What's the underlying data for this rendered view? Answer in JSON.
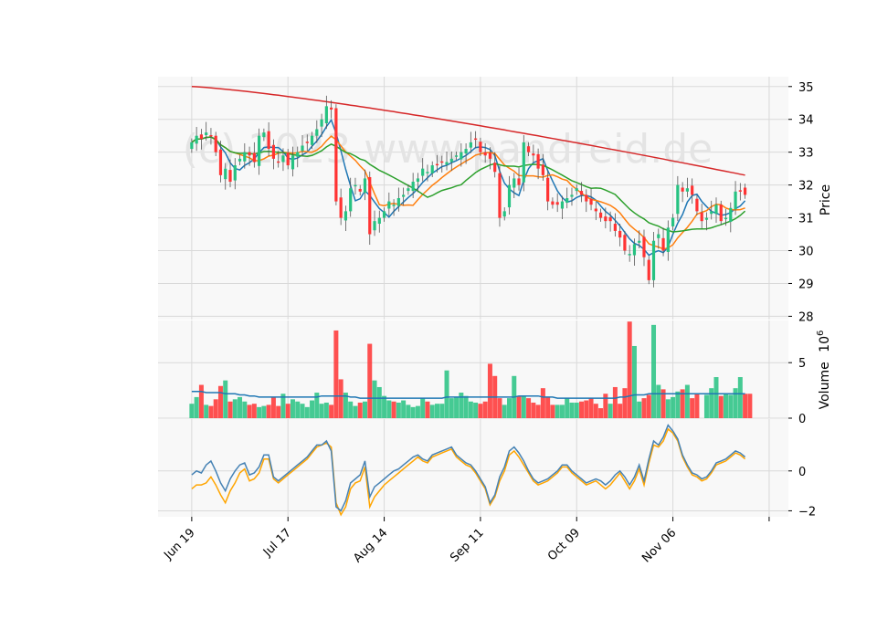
{
  "watermark": "(c) 2023 www.pandreid.de",
  "colors": {
    "up": "#26c281",
    "down": "#ff3333",
    "ma_fast": "#1f77b4",
    "ma_mid": "#ff7f0e",
    "ma_slow": "#2ca02c",
    "ma_long": "#d62728",
    "osc_blue": "#4682b4",
    "osc_orange": "#ffa500",
    "volume_ma": "#1f77b4",
    "grid": "#d9d9d9",
    "panel_bg": "#f8f8f8"
  },
  "chart_data": [
    {
      "type": "candlestick",
      "ylabel": "Price",
      "ylim": [
        27.9,
        35.3
      ],
      "yticks": [
        28,
        29,
        30,
        31,
        32,
        33,
        34,
        35
      ],
      "x_tick_labels": [
        "Jun 19",
        "Jul 17",
        "Aug 14",
        "Sep 11",
        "Oct 09",
        "Nov 06"
      ],
      "x_tick_index": [
        0,
        20,
        40,
        60,
        80,
        100
      ],
      "x_range": [
        -7,
        124
      ],
      "grid": true,
      "close": [
        33.3,
        33.5,
        33.4,
        33.6,
        33.5,
        33.0,
        32.3,
        32.5,
        32.1,
        32.6,
        32.8,
        33.0,
        32.9,
        32.7,
        33.5,
        33.6,
        33.1,
        32.8,
        32.7,
        32.9,
        32.6,
        32.9,
        33.0,
        33.2,
        33.3,
        33.5,
        33.7,
        34.0,
        34.4,
        34.3,
        31.5,
        31.0,
        31.2,
        31.9,
        32.0,
        31.8,
        32.2,
        30.5,
        30.9,
        31.0,
        31.2,
        31.5,
        31.4,
        31.6,
        31.7,
        31.9,
        32.1,
        32.2,
        32.5,
        32.4,
        32.6,
        32.6,
        32.7,
        32.7,
        32.8,
        32.9,
        33.0,
        33.1,
        33.3,
        33.4,
        33.0,
        32.9,
        32.8,
        32.4,
        31.0,
        31.2,
        32.0,
        32.2,
        32.0,
        33.3,
        33.0,
        32.9,
        32.5,
        32.3,
        31.5,
        31.4,
        31.4,
        31.5,
        31.6,
        31.7,
        31.9,
        31.7,
        31.5,
        31.4,
        31.2,
        31.0,
        30.9,
        30.9,
        30.6,
        30.4,
        30.0,
        29.9,
        30.2,
        30.3,
        29.8,
        29.1,
        30.3,
        30.5,
        30.0,
        30.7,
        31.0,
        32.0,
        31.8,
        31.9,
        31.7,
        31.2,
        30.9,
        31.0,
        31.2,
        31.4,
        30.9,
        31.0,
        31.3,
        31.8,
        31.8,
        31.7
      ]
    },
    {
      "type": "bar",
      "ylabel": "Volume",
      "unit_label": "10^6",
      "ylim": [
        0,
        8.8
      ],
      "yticks": [
        0,
        5
      ],
      "values": [
        1.3,
        1.9,
        3.0,
        1.2,
        1.1,
        1.7,
        2.9,
        3.4,
        1.5,
        1.7,
        1.9,
        1.5,
        1.2,
        1.3,
        1.0,
        1.1,
        1.2,
        1.9,
        1.1,
        2.2,
        1.3,
        1.7,
        1.5,
        1.3,
        1.0,
        1.6,
        2.3,
        1.3,
        1.4,
        1.2,
        7.9,
        3.5,
        2.3,
        1.5,
        1.1,
        1.4,
        1.5,
        6.7,
        3.4,
        2.8,
        2.0,
        1.6,
        1.5,
        1.4,
        1.6,
        1.2,
        1.0,
        1.1,
        1.8,
        1.5,
        1.2,
        1.3,
        1.3,
        4.3,
        1.8,
        1.9,
        2.3,
        2.0,
        1.5,
        1.4,
        1.3,
        1.5,
        4.9,
        3.8,
        1.8,
        1.2,
        1.8,
        3.8,
        2.0,
        2.0,
        1.8,
        1.4,
        1.2,
        2.7,
        1.9,
        1.2,
        1.2,
        1.2,
        1.8,
        1.4,
        1.4,
        1.5,
        1.6,
        1.8,
        1.3,
        0.9,
        2.2,
        1.3,
        2.8,
        1.3,
        2.7,
        8.7,
        6.5,
        1.5,
        1.8,
        2.1,
        8.4,
        3.0,
        2.6,
        1.7,
        1.9,
        2.4,
        2.6,
        3.0,
        1.8,
        2.2,
        0.0,
        2.1,
        2.7,
        3.7,
        2.0,
        2.2,
        2.1,
        2.7,
        3.7,
        2.2,
        2.2
      ],
      "ma_values": [
        2.4,
        2.4,
        2.4,
        2.3,
        2.3,
        2.3,
        2.3,
        2.2,
        2.2,
        2.2,
        2.1,
        2.1,
        2.0,
        2.0,
        1.9,
        1.9,
        1.9,
        1.9,
        1.9,
        1.9,
        1.9,
        1.9,
        1.9,
        1.9,
        1.9,
        1.9,
        1.9,
        2.0,
        2.0,
        2.0,
        2.0,
        2.0,
        2.0,
        1.9,
        1.9,
        1.8,
        1.8,
        1.8,
        1.8,
        1.8,
        1.8,
        1.8,
        1.8,
        1.8,
        1.8,
        1.8,
        1.8,
        1.8,
        1.8,
        1.8,
        1.8,
        1.8,
        1.8,
        1.9,
        1.9,
        1.9,
        1.9,
        1.9,
        1.9,
        1.9,
        1.9,
        1.9,
        1.9,
        1.9,
        1.9,
        1.9,
        1.9,
        1.9,
        2.0,
        2.0,
        2.0,
        2.0,
        2.0,
        1.9,
        1.9,
        1.9,
        1.8,
        1.8,
        1.8,
        1.8,
        1.8,
        1.8,
        1.8,
        1.8,
        1.8,
        1.8,
        1.8,
        1.8,
        1.8,
        1.9,
        1.9,
        2.0,
        2.1,
        2.1,
        2.1,
        2.2,
        2.2,
        2.2,
        2.2,
        2.2,
        2.2,
        2.2,
        2.2,
        2.2,
        2.2,
        2.2,
        2.2,
        2.2,
        2.2,
        2.2,
        2.2,
        2.2,
        2.2,
        2.2,
        2.2,
        2.2
      ]
    },
    {
      "type": "line",
      "ylim": [
        -2.3,
        2.6
      ],
      "yticks": [
        -2,
        0
      ],
      "series": [
        {
          "values": [
            -0.2,
            0.0,
            -0.1,
            0.3,
            0.5,
            0.0,
            -0.6,
            -1.0,
            -0.4,
            0.0,
            0.3,
            0.4,
            -0.2,
            -0.1,
            0.2,
            0.8,
            0.8,
            -0.3,
            -0.5,
            -0.3,
            -0.1,
            0.1,
            0.3,
            0.5,
            0.7,
            1.0,
            1.3,
            1.3,
            1.5,
            1.0,
            -1.8,
            -2.0,
            -1.5,
            -0.6,
            -0.4,
            -0.2,
            0.5,
            -1.3,
            -0.8,
            -0.6,
            -0.4,
            -0.2,
            0.0,
            0.1,
            0.3,
            0.5,
            0.7,
            0.8,
            0.6,
            0.5,
            0.8,
            0.9,
            1.0,
            1.1,
            1.2,
            0.8,
            0.6,
            0.4,
            0.3,
            0.0,
            -0.4,
            -0.8,
            -1.6,
            -1.2,
            -0.3,
            0.2,
            1.0,
            1.2,
            0.9,
            0.5,
            0.0,
            -0.4,
            -0.6,
            -0.5,
            -0.4,
            -0.2,
            0.0,
            0.3,
            0.3,
            0.0,
            -0.2,
            -0.4,
            -0.6,
            -0.5,
            -0.4,
            -0.5,
            -0.7,
            -0.5,
            -0.2,
            0.0,
            -0.3,
            -0.7,
            -0.3,
            0.3,
            -0.5,
            0.6,
            1.5,
            1.3,
            1.7,
            2.3,
            2.0,
            1.6,
            0.8,
            0.3,
            -0.1,
            -0.2,
            -0.4,
            -0.3,
            0.0,
            0.4,
            0.5,
            0.6,
            0.8,
            1.0,
            0.9,
            0.7
          ]
        },
        {
          "values": [
            -0.9,
            -0.7,
            -0.7,
            -0.6,
            -0.3,
            -0.7,
            -1.2,
            -1.6,
            -1.0,
            -0.6,
            -0.1,
            0.1,
            -0.5,
            -0.4,
            -0.1,
            0.6,
            0.6,
            -0.4,
            -0.6,
            -0.4,
            -0.2,
            0.0,
            0.2,
            0.4,
            0.6,
            0.9,
            1.2,
            1.3,
            1.4,
            1.2,
            -1.6,
            -2.2,
            -1.8,
            -0.9,
            -0.6,
            -0.5,
            0.2,
            -1.8,
            -1.3,
            -1.0,
            -0.7,
            -0.5,
            -0.3,
            -0.1,
            0.1,
            0.3,
            0.5,
            0.7,
            0.5,
            0.4,
            0.7,
            0.8,
            0.9,
            1.0,
            1.1,
            0.7,
            0.5,
            0.3,
            0.2,
            -0.1,
            -0.5,
            -0.9,
            -1.7,
            -1.3,
            -0.5,
            0.0,
            0.8,
            1.0,
            0.7,
            0.3,
            -0.1,
            -0.5,
            -0.7,
            -0.6,
            -0.5,
            -0.3,
            -0.1,
            0.2,
            0.2,
            -0.1,
            -0.3,
            -0.5,
            -0.7,
            -0.6,
            -0.5,
            -0.7,
            -0.9,
            -0.7,
            -0.4,
            -0.1,
            -0.5,
            -0.9,
            -0.5,
            0.1,
            -0.7,
            0.4,
            1.3,
            1.2,
            1.5,
            2.1,
            1.9,
            1.5,
            0.7,
            0.2,
            -0.2,
            -0.3,
            -0.5,
            -0.4,
            -0.1,
            0.3,
            0.4,
            0.5,
            0.7,
            0.9,
            0.8,
            0.6
          ]
        }
      ]
    }
  ]
}
